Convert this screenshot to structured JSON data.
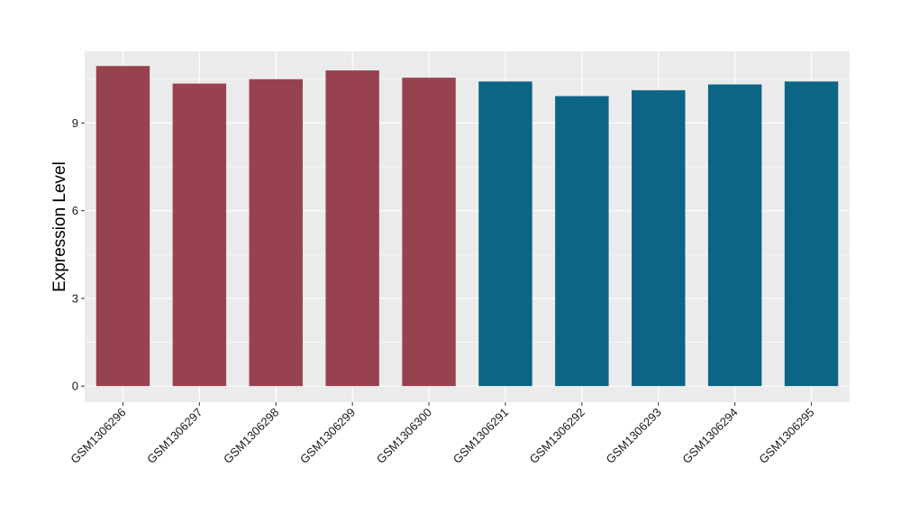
{
  "chart_data": {
    "type": "bar",
    "ylabel": "Expression Level",
    "xlabel": "",
    "title": "",
    "ylim": [
      -0.55,
      11.45
    ],
    "yticks": [
      0,
      3,
      6,
      9
    ],
    "grid": true,
    "categories": [
      "GSM1306296",
      "GSM1306297",
      "GSM1306298",
      "GSM1306299",
      "GSM1306300",
      "GSM1306291",
      "GSM1306292",
      "GSM1306293",
      "GSM1306294",
      "GSM1306295"
    ],
    "values": [
      10.95,
      10.35,
      10.5,
      10.8,
      10.55,
      10.42,
      9.92,
      10.12,
      10.32,
      10.42
    ],
    "bar_colors": [
      "#99424f",
      "#99424f",
      "#99424f",
      "#99424f",
      "#99424f",
      "#0c6585",
      "#0c6585",
      "#0c6585",
      "#0c6585",
      "#0c6585"
    ],
    "panel_background": "#ebebeb",
    "grid_color": "#ffffff"
  }
}
